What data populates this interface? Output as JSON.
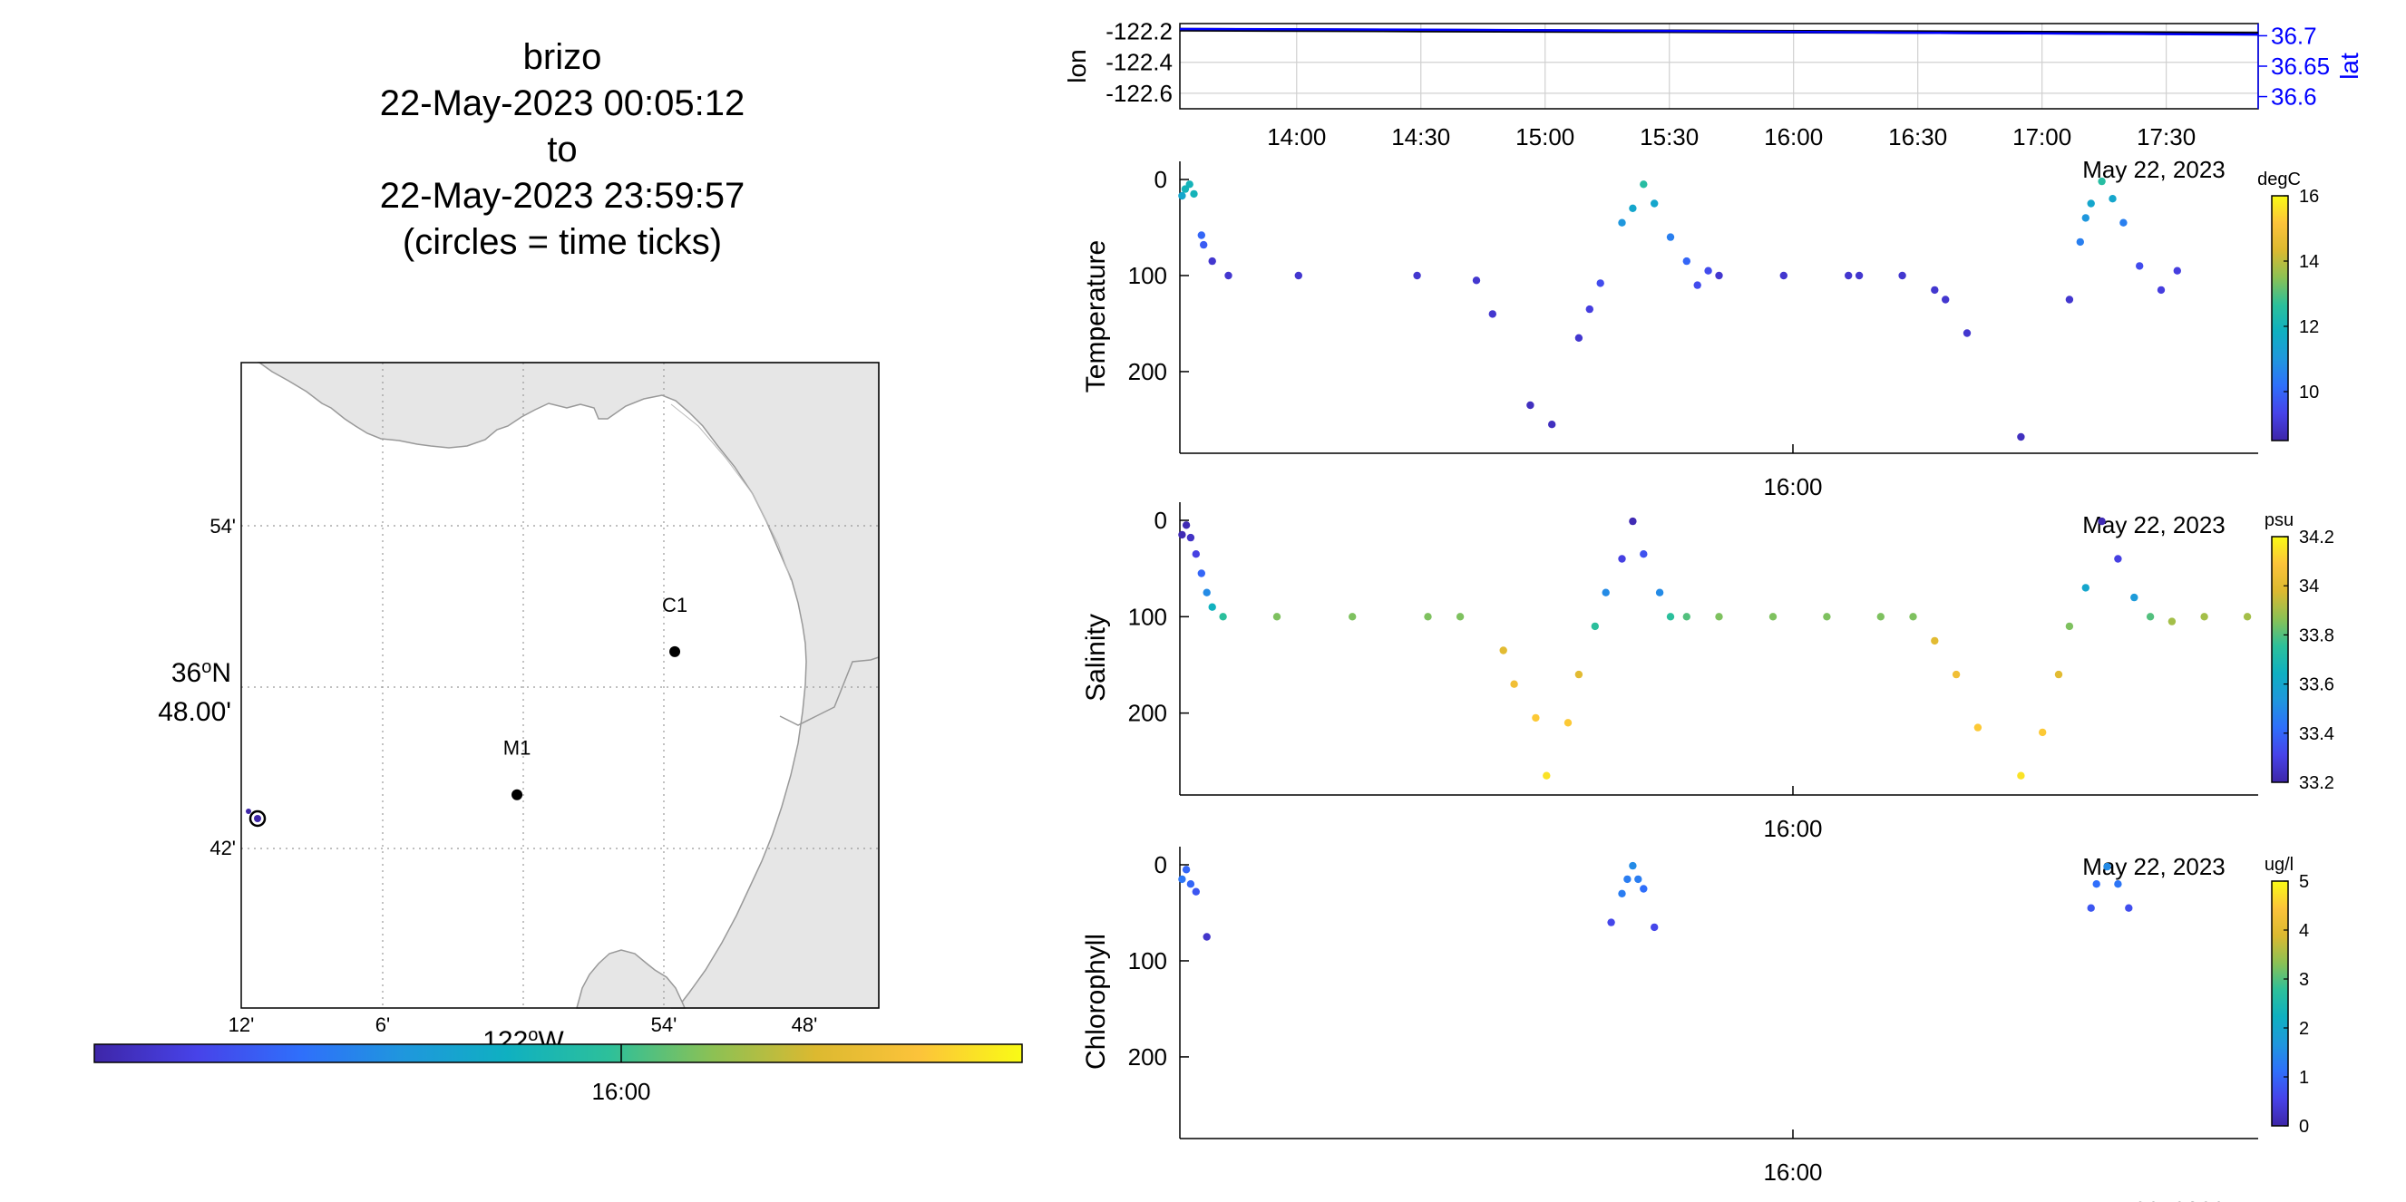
{
  "title_lines": [
    "brizo",
    "22-May-2023 00:05:12",
    "to",
    "22-May-2023 23:59:57",
    "(circles = time ticks)"
  ],
  "colors": {
    "parula": [
      "#3e26a8",
      "#4743e9",
      "#2f6ffb",
      "#1f97dd",
      "#0fb0c1",
      "#2dc09a",
      "#8cc154",
      "#dcb930",
      "#fcc33a",
      "#f9fb15"
    ],
    "land": "#e6e6e6",
    "lat_axis": "#0000ff",
    "station": "#000000"
  },
  "map": {
    "lat_ticks": [
      "54'",
      "36°N 48.00'",
      "42'"
    ],
    "lat_label_deg": "36",
    "lat_label_min": "48.00'",
    "lon_ticks": [
      "12'",
      "6'",
      "54'",
      "48'"
    ],
    "lon_label": "122°W",
    "lon_label_deg": "122",
    "lon_label_suffix": "W",
    "degree": "o",
    "lat_suffix": "N",
    "stations": [
      {
        "name": "C1",
        "lon": -121.928,
        "lat": 36.797
      },
      {
        "name": "M1",
        "lon": -122.027,
        "lat": 36.746
      }
    ],
    "glider": {
      "lon": -122.195,
      "lat": 36.712
    },
    "colorbar_tick": "16:00"
  },
  "chart_data": [
    {
      "type": "line",
      "ylabel": "lon",
      "y2label": "lat",
      "x_ticks": [
        "14:00",
        "14:30",
        "15:00",
        "15:30",
        "16:00",
        "16:30",
        "17:00",
        "17:30"
      ],
      "y_ticks": [
        "-122.2",
        "-122.4",
        "-122.6"
      ],
      "y2_ticks": [
        "36.7",
        "36.65",
        "36.6"
      ],
      "date_label": "May 22, 2023",
      "ylim": [
        -122.7,
        -122.15
      ],
      "y2lim": [
        36.58,
        36.72
      ],
      "x_hours": [
        13.53,
        17.87
      ],
      "series": [
        {
          "name": "lon",
          "x": [
            13.53,
            14.5,
            15.5,
            16.5,
            17.87
          ],
          "y": [
            -122.19,
            -122.195,
            -122.2,
            -122.205,
            -122.215
          ]
        },
        {
          "name": "lat",
          "x": [
            13.53,
            14.5,
            15.5,
            16.5,
            17.87
          ],
          "y": [
            36.711,
            36.71,
            36.708,
            36.705,
            36.702
          ]
        }
      ]
    },
    {
      "type": "scatter",
      "ylabel": "Temperature",
      "x_tick": "16:00",
      "date_label": "May 22, 2023",
      "y_ticks": [
        "0",
        "100",
        "200"
      ],
      "ylim": [
        0,
        285
      ],
      "colorbar_label": "degC",
      "colorbar_ticks": [
        "16",
        "14",
        "12",
        "10"
      ],
      "clim": [
        8.5,
        16
      ],
      "points": [
        [
          0.002,
          17,
          11.5
        ],
        [
          0.005,
          10,
          12
        ],
        [
          0.009,
          5,
          12
        ],
        [
          0.013,
          15,
          12
        ],
        [
          0.02,
          58,
          10
        ],
        [
          0.022,
          68,
          9.8
        ],
        [
          0.03,
          85,
          9
        ],
        [
          0.045,
          100,
          9
        ],
        [
          0.11,
          100,
          9
        ],
        [
          0.22,
          100,
          9
        ],
        [
          0.275,
          105,
          9
        ],
        [
          0.29,
          140,
          9
        ],
        [
          0.325,
          235,
          8.8
        ],
        [
          0.345,
          255,
          8.8
        ],
        [
          0.37,
          165,
          9
        ],
        [
          0.38,
          135,
          9.2
        ],
        [
          0.39,
          108,
          9.5
        ],
        [
          0.41,
          45,
          11
        ],
        [
          0.42,
          30,
          11.5
        ],
        [
          0.43,
          5,
          12.5
        ],
        [
          0.44,
          25,
          11.5
        ],
        [
          0.455,
          60,
          10.5
        ],
        [
          0.47,
          85,
          10
        ],
        [
          0.48,
          110,
          9.5
        ],
        [
          0.49,
          95,
          9.5
        ],
        [
          0.5,
          100,
          9
        ],
        [
          0.56,
          100,
          9
        ],
        [
          0.62,
          100,
          9
        ],
        [
          0.63,
          100,
          9
        ],
        [
          0.67,
          100,
          9
        ],
        [
          0.7,
          115,
          9
        ],
        [
          0.71,
          125,
          9
        ],
        [
          0.73,
          160,
          9
        ],
        [
          0.78,
          268,
          8.8
        ],
        [
          0.825,
          125,
          9
        ],
        [
          0.835,
          65,
          10.5
        ],
        [
          0.84,
          40,
          11
        ],
        [
          0.845,
          25,
          11.5
        ],
        [
          0.855,
          2,
          12.5
        ],
        [
          0.865,
          20,
          11.5
        ],
        [
          0.875,
          45,
          10.5
        ],
        [
          0.89,
          90,
          9.5
        ],
        [
          0.91,
          115,
          9.2
        ],
        [
          0.925,
          95,
          9.2
        ]
      ]
    },
    {
      "type": "scatter",
      "ylabel": "Salinity",
      "x_tick": "16:00",
      "date_label": "May 22, 2023",
      "y_ticks": [
        "0",
        "100",
        "200"
      ],
      "ylim": [
        0,
        285
      ],
      "colorbar_label": "psu",
      "colorbar_ticks": [
        "34.2",
        "34",
        "33.8",
        "33.6",
        "33.4",
        "33.2"
      ],
      "clim": [
        33.2,
        34.2
      ],
      "points": [
        [
          0.002,
          15,
          33.22
        ],
        [
          0.006,
          5,
          33.22
        ],
        [
          0.01,
          18,
          33.25
        ],
        [
          0.015,
          35,
          33.3
        ],
        [
          0.02,
          55,
          33.4
        ],
        [
          0.025,
          75,
          33.5
        ],
        [
          0.03,
          90,
          33.65
        ],
        [
          0.04,
          100,
          33.75
        ],
        [
          0.09,
          100,
          33.85
        ],
        [
          0.16,
          100,
          33.85
        ],
        [
          0.23,
          100,
          33.85
        ],
        [
          0.26,
          100,
          33.85
        ],
        [
          0.3,
          135,
          34
        ],
        [
          0.31,
          170,
          34.05
        ],
        [
          0.33,
          205,
          34.1
        ],
        [
          0.34,
          265,
          34.15
        ],
        [
          0.36,
          210,
          34.1
        ],
        [
          0.37,
          160,
          34
        ],
        [
          0.385,
          110,
          33.75
        ],
        [
          0.395,
          75,
          33.5
        ],
        [
          0.41,
          40,
          33.3
        ],
        [
          0.42,
          1,
          33.22
        ],
        [
          0.43,
          35,
          33.35
        ],
        [
          0.445,
          75,
          33.5
        ],
        [
          0.455,
          100,
          33.75
        ],
        [
          0.47,
          100,
          33.8
        ],
        [
          0.5,
          100,
          33.85
        ],
        [
          0.55,
          100,
          33.85
        ],
        [
          0.6,
          100,
          33.85
        ],
        [
          0.65,
          100,
          33.85
        ],
        [
          0.68,
          100,
          33.85
        ],
        [
          0.7,
          125,
          34
        ],
        [
          0.72,
          160,
          34.05
        ],
        [
          0.74,
          215,
          34.1
        ],
        [
          0.78,
          265,
          34.15
        ],
        [
          0.8,
          220,
          34.1
        ],
        [
          0.815,
          160,
          34
        ],
        [
          0.825,
          110,
          33.85
        ],
        [
          0.84,
          70,
          33.6
        ],
        [
          0.855,
          1,
          33.22
        ],
        [
          0.87,
          40,
          33.3
        ],
        [
          0.885,
          80,
          33.55
        ],
        [
          0.9,
          100,
          33.8
        ],
        [
          0.92,
          105,
          33.9
        ],
        [
          0.95,
          100,
          33.9
        ],
        [
          0.99,
          100,
          33.9
        ]
      ]
    },
    {
      "type": "scatter",
      "ylabel": "Chlorophyll",
      "x_tick": "16:00",
      "date_label": "May 22, 2023",
      "y_ticks": [
        "0",
        "100",
        "200"
      ],
      "ylim": [
        0,
        285
      ],
      "colorbar_label": "ug/l",
      "colorbar_ticks": [
        "5",
        "4",
        "3",
        "2",
        "1",
        "0"
      ],
      "clim": [
        0,
        5
      ],
      "points": [
        [
          0.002,
          15,
          1.2
        ],
        [
          0.006,
          5,
          1.0
        ],
        [
          0.01,
          20,
          1.0
        ],
        [
          0.015,
          28,
          0.8
        ],
        [
          0.025,
          75,
          0.3
        ],
        [
          0.4,
          60,
          0.6
        ],
        [
          0.41,
          30,
          1.3
        ],
        [
          0.415,
          15,
          1.3
        ],
        [
          0.42,
          1,
          1.5
        ],
        [
          0.425,
          15,
          1.3
        ],
        [
          0.43,
          25,
          1.1
        ],
        [
          0.44,
          65,
          0.6
        ],
        [
          0.845,
          45,
          0.8
        ],
        [
          0.85,
          20,
          1.1
        ],
        [
          0.86,
          2,
          1.5
        ],
        [
          0.87,
          20,
          1.2
        ],
        [
          0.88,
          45,
          0.7
        ]
      ]
    }
  ]
}
